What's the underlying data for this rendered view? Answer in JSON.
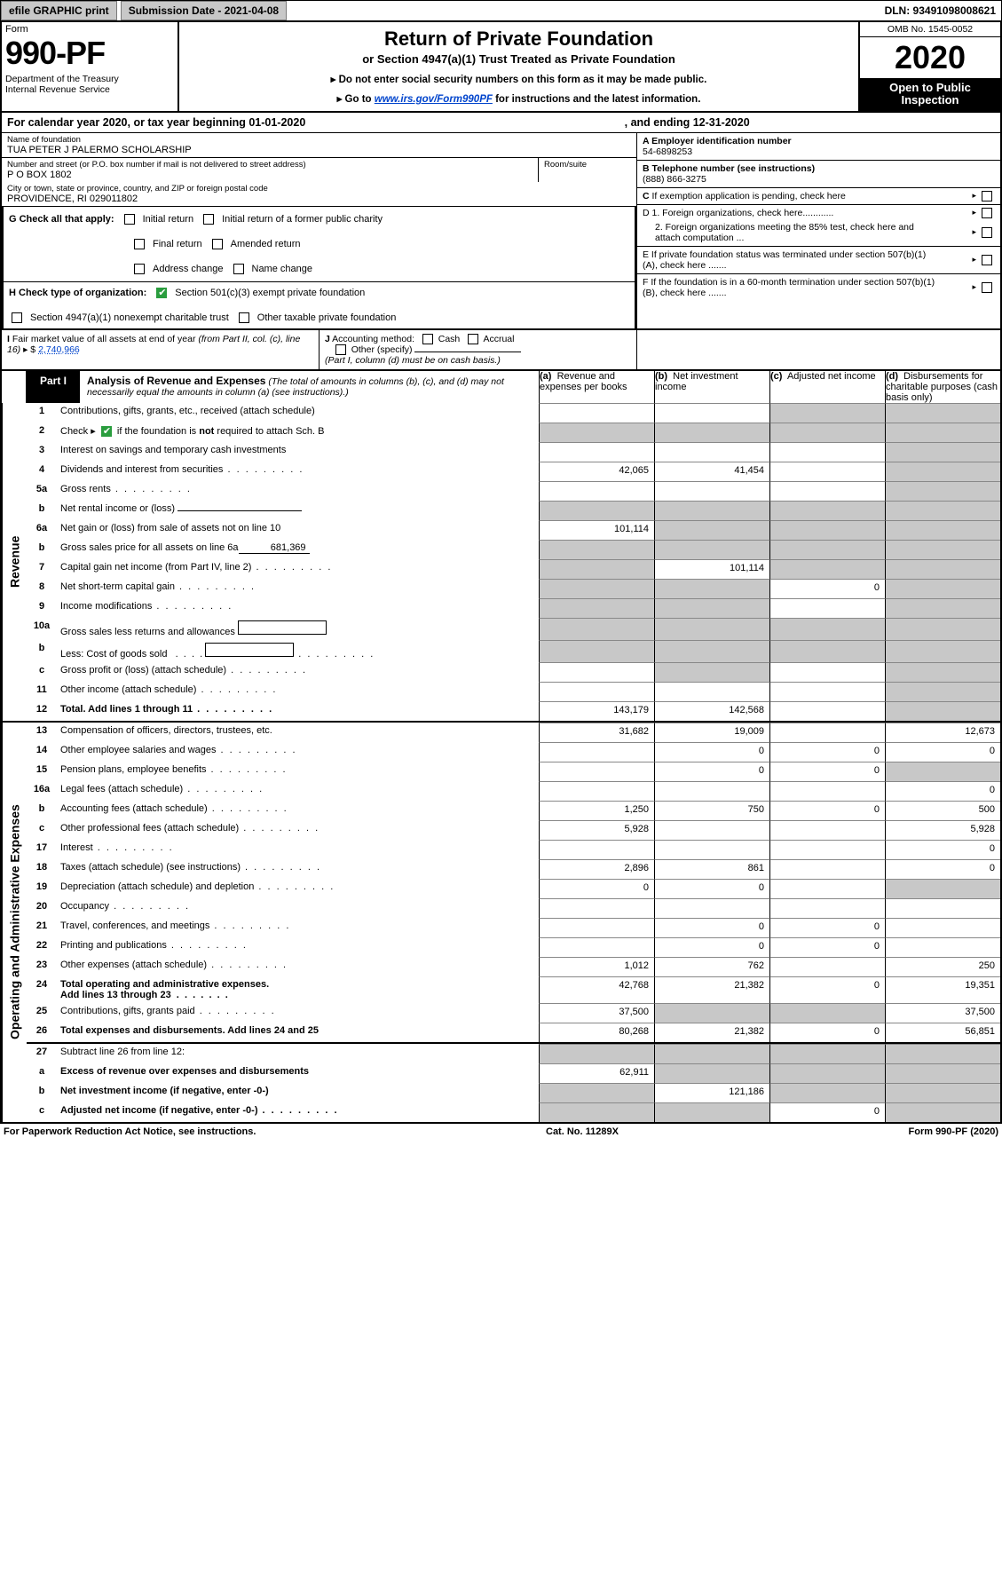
{
  "top": {
    "efile": "efile GRAPHIC print",
    "submission": "Submission Date - 2021-04-08",
    "dln": "DLN: 93491098008621"
  },
  "header": {
    "form_word": "Form",
    "form_num": "990-PF",
    "dept": "Department of the Treasury\nInternal Revenue Service",
    "title": "Return of Private Foundation",
    "subtitle": "or Section 4947(a)(1) Trust Treated as Private Foundation",
    "note1": "▸ Do not enter social security numbers on this form as it may be made public.",
    "note2_pre": "▸ Go to ",
    "note2_link": "www.irs.gov/Form990PF",
    "note2_post": " for instructions and the latest information.",
    "omb": "OMB No. 1545-0052",
    "year": "2020",
    "open": "Open to Public Inspection"
  },
  "calyear": {
    "text1": "For calendar year 2020, or tax year beginning 01-01-2020",
    "text2": ", and ending 12-31-2020"
  },
  "info": {
    "name_lbl": "Name of foundation",
    "name_val": "TUA PETER J PALERMO SCHOLARSHIP",
    "addr_lbl": "Number and street (or P.O. box number if mail is not delivered to street address)",
    "addr_val": "P O BOX 1802",
    "room_lbl": "Room/suite",
    "city_lbl": "City or town, state or province, country, and ZIP or foreign postal code",
    "city_val": "PROVIDENCE, RI  029011802",
    "ein_lbl": "A Employer identification number",
    "ein_val": "54-6898253",
    "tel_lbl": "B Telephone number (see instructions)",
    "tel_val": "(888) 866-3275",
    "c_lbl": "C If exemption application is pending, check here",
    "d1_lbl": "D 1. Foreign organizations, check here............",
    "d2_lbl": "2. Foreign organizations meeting the 85% test, check here and attach computation ...",
    "e_lbl": "E  If private foundation status was terminated under section 507(b)(1)(A), check here .......",
    "f_lbl": "F  If the foundation is in a 60-month termination under section 507(b)(1)(B), check here ......."
  },
  "g_checks": {
    "label": "G Check all that apply:",
    "opts": [
      "Initial return",
      "Initial return of a former public charity",
      "Final return",
      "Amended return",
      "Address change",
      "Name change"
    ]
  },
  "h_checks": {
    "label": "H Check type of organization:",
    "opt1": "Section 501(c)(3) exempt private foundation",
    "opt2": "Section 4947(a)(1) nonexempt charitable trust",
    "opt3": "Other taxable private foundation"
  },
  "i_block": {
    "label": "I Fair market value of all assets at end of year (from Part II, col. (c), line 16) ▸ $",
    "val": "2,740,966",
    "j_label": "J Accounting method:",
    "cash": "Cash",
    "accrual": "Accrual",
    "other": "Other (specify)",
    "note": "(Part I, column (d) must be on cash basis.)"
  },
  "part1": {
    "label": "Part I",
    "title": "Analysis of Revenue and Expenses",
    "note": "(The total of amounts in columns (b), (c), and (d) may not necessarily equal the amounts in column (a) (see instructions).)",
    "col_a": "(a)  Revenue and expenses per books",
    "col_b": "(b)  Net investment income",
    "col_c": "(c)  Adjusted net income",
    "col_d": "(d)  Disbursements for charitable purposes (cash basis only)"
  },
  "side": {
    "rev": "Revenue",
    "exp": "Operating and Administrative Expenses"
  },
  "rows": {
    "r1": {
      "ln": "1",
      "desc": "Contributions, gifts, grants, etc., received (attach schedule)"
    },
    "r2": {
      "ln": "2",
      "desc_pre": "Check ▸",
      "desc_post": " if the foundation is not required to attach Sch. B"
    },
    "r3": {
      "ln": "3",
      "desc": "Interest on savings and temporary cash investments"
    },
    "r4": {
      "ln": "4",
      "desc": "Dividends and interest from securities",
      "a": "42,065",
      "b": "41,454"
    },
    "r5a": {
      "ln": "5a",
      "desc": "Gross rents"
    },
    "r5b": {
      "ln": "b",
      "desc": "Net rental income or (loss)"
    },
    "r6a": {
      "ln": "6a",
      "desc": "Net gain or (loss) from sale of assets not on line 10",
      "a": "101,114"
    },
    "r6b": {
      "ln": "b",
      "desc": "Gross sales price for all assets on line 6a",
      "inline": "681,369"
    },
    "r7": {
      "ln": "7",
      "desc": "Capital gain net income (from Part IV, line 2)",
      "b": "101,114"
    },
    "r8": {
      "ln": "8",
      "desc": "Net short-term capital gain",
      "c": "0"
    },
    "r9": {
      "ln": "9",
      "desc": "Income modifications"
    },
    "r10a": {
      "ln": "10a",
      "desc": "Gross sales less returns and allowances"
    },
    "r10b": {
      "ln": "b",
      "desc": "Less: Cost of goods sold"
    },
    "r10c": {
      "ln": "c",
      "desc": "Gross profit or (loss) (attach schedule)"
    },
    "r11": {
      "ln": "11",
      "desc": "Other income (attach schedule)"
    },
    "r12": {
      "ln": "12",
      "desc": "Total. Add lines 1 through 11",
      "a": "143,179",
      "b": "142,568"
    },
    "r13": {
      "ln": "13",
      "desc": "Compensation of officers, directors, trustees, etc.",
      "a": "31,682",
      "b": "19,009",
      "d": "12,673"
    },
    "r14": {
      "ln": "14",
      "desc": "Other employee salaries and wages",
      "b": "0",
      "c": "0",
      "d": "0"
    },
    "r15": {
      "ln": "15",
      "desc": "Pension plans, employee benefits",
      "b": "0",
      "c": "0"
    },
    "r16a": {
      "ln": "16a",
      "desc": "Legal fees (attach schedule)",
      "d": "0"
    },
    "r16b": {
      "ln": "b",
      "desc": "Accounting fees (attach schedule)",
      "a": "1,250",
      "b": "750",
      "c": "0",
      "d": "500"
    },
    "r16c": {
      "ln": "c",
      "desc": "Other professional fees (attach schedule)",
      "a": "5,928",
      "d": "5,928"
    },
    "r17": {
      "ln": "17",
      "desc": "Interest",
      "d": "0"
    },
    "r18": {
      "ln": "18",
      "desc": "Taxes (attach schedule) (see instructions)",
      "a": "2,896",
      "b": "861",
      "d": "0"
    },
    "r19": {
      "ln": "19",
      "desc": "Depreciation (attach schedule) and depletion",
      "a": "0",
      "b": "0"
    },
    "r20": {
      "ln": "20",
      "desc": "Occupancy"
    },
    "r21": {
      "ln": "21",
      "desc": "Travel, conferences, and meetings",
      "b": "0",
      "c": "0"
    },
    "r22": {
      "ln": "22",
      "desc": "Printing and publications",
      "b": "0",
      "c": "0"
    },
    "r23": {
      "ln": "23",
      "desc": "Other expenses (attach schedule)",
      "a": "1,012",
      "b": "762",
      "d": "250"
    },
    "r24": {
      "ln": "24",
      "desc": "Total operating and administrative expenses. Add lines 13 through 23",
      "a": "42,768",
      "b": "21,382",
      "c": "0",
      "d": "19,351"
    },
    "r25": {
      "ln": "25",
      "desc": "Contributions, gifts, grants paid",
      "a": "37,500",
      "d": "37,500"
    },
    "r26": {
      "ln": "26",
      "desc": "Total expenses and disbursements. Add lines 24 and 25",
      "a": "80,268",
      "b": "21,382",
      "c": "0",
      "d": "56,851"
    },
    "r27": {
      "ln": "27",
      "desc": "Subtract line 26 from line 12:"
    },
    "r27a": {
      "ln": "a",
      "desc": "Excess of revenue over expenses and disbursements",
      "a": "62,911"
    },
    "r27b": {
      "ln": "b",
      "desc": "Net investment income (if negative, enter -0-)",
      "b": "121,186"
    },
    "r27c": {
      "ln": "c",
      "desc": "Adjusted net income (if negative, enter -0-)",
      "c": "0"
    }
  },
  "footer": {
    "left": "For Paperwork Reduction Act Notice, see instructions.",
    "mid": "Cat. No. 11289X",
    "right": "Form 990-PF (2020)"
  },
  "colors": {
    "grey": "#c8c8c8",
    "link": "#0044cc",
    "green": "#2a9d3e"
  }
}
